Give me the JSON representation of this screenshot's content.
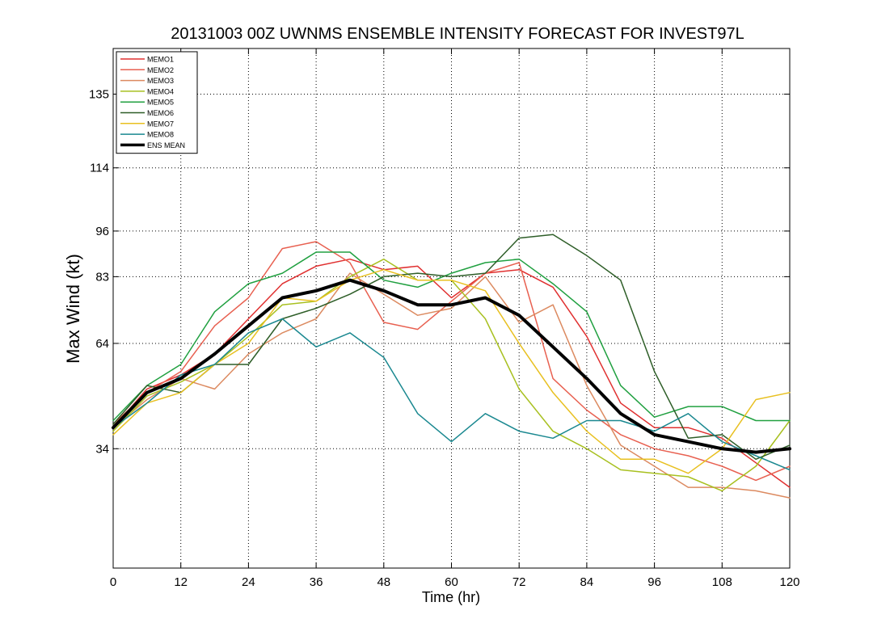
{
  "chart_data": {
    "type": "line",
    "title": "20131003 00Z UWNMS ENSEMBLE INTENSITY FORECAST FOR INVEST97L",
    "xlabel": "Time (hr)",
    "ylabel": "Max Wind (kt)",
    "xlim": [
      0,
      120
    ],
    "ylim": [
      0,
      148
    ],
    "xticks": [
      0,
      12,
      24,
      36,
      48,
      60,
      72,
      84,
      96,
      108,
      120
    ],
    "yticks": [
      34,
      64,
      83,
      96,
      114,
      135
    ],
    "grid": true,
    "legend_position": "top-left",
    "x": [
      0,
      6,
      12,
      18,
      24,
      30,
      36,
      42,
      48,
      54,
      60,
      66,
      72,
      78,
      84,
      90,
      96,
      102,
      108,
      114,
      120
    ],
    "series": [
      {
        "name": "MEMO1",
        "color": "#e03030",
        "width": 1.5,
        "values": [
          40,
          51,
          55,
          61,
          71,
          81,
          86,
          88,
          85,
          86,
          77,
          84,
          85,
          80,
          66,
          47,
          40,
          40,
          37,
          30,
          23
        ]
      },
      {
        "name": "MEMO2",
        "color": "#e86050",
        "width": 1.5,
        "values": [
          41,
          50,
          56,
          69,
          77,
          91,
          93,
          87,
          70,
          68,
          76,
          84,
          87,
          54,
          45,
          38,
          34,
          32,
          29,
          25,
          29
        ]
      },
      {
        "name": "MEMO3",
        "color": "#dc8a60",
        "width": 1.5,
        "values": [
          40,
          48,
          54,
          51,
          61,
          67,
          71,
          84,
          78,
          72,
          74,
          83,
          70,
          75,
          52,
          35,
          29,
          23,
          23,
          22,
          20
        ]
      },
      {
        "name": "MEMO4",
        "color": "#a8c020",
        "width": 1.5,
        "values": [
          39,
          49,
          53,
          58,
          66,
          75,
          76,
          83,
          88,
          82,
          82,
          71,
          51,
          39,
          34,
          28,
          27,
          26,
          22,
          29,
          42
        ]
      },
      {
        "name": "MEMO5",
        "color": "#20a040",
        "width": 1.5,
        "values": [
          42,
          52,
          58,
          73,
          81,
          84,
          90,
          90,
          82,
          80,
          84,
          87,
          88,
          81,
          73,
          52,
          43,
          46,
          46,
          42,
          42
        ]
      },
      {
        "name": "MEMO6",
        "color": "#2e5e28",
        "width": 1.5,
        "values": [
          41,
          52,
          50,
          58,
          58,
          71,
          74,
          78,
          83,
          84,
          83,
          84,
          94,
          95,
          89,
          82,
          56,
          37,
          38,
          31,
          35
        ]
      },
      {
        "name": "MEMO7",
        "color": "#e8c020",
        "width": 1.5,
        "values": [
          38,
          47,
          50,
          58,
          64,
          77,
          76,
          82,
          85,
          82,
          82,
          79,
          64,
          50,
          39,
          31,
          31,
          27,
          34,
          48,
          50
        ]
      },
      {
        "name": "MEMO8",
        "color": "#1a8890",
        "width": 1.5,
        "values": [
          40,
          47,
          55,
          58,
          67,
          71,
          63,
          67,
          60,
          44,
          36,
          44,
          39,
          37,
          42,
          42,
          39,
          44,
          36,
          32,
          28
        ]
      },
      {
        "name": "ENS MEAN",
        "color": "#000000",
        "width": 4,
        "values": [
          40,
          50,
          54,
          61,
          69,
          77,
          79,
          82,
          79,
          75,
          75,
          77,
          72,
          63,
          54,
          44,
          38,
          36,
          34,
          33,
          34
        ]
      }
    ]
  }
}
